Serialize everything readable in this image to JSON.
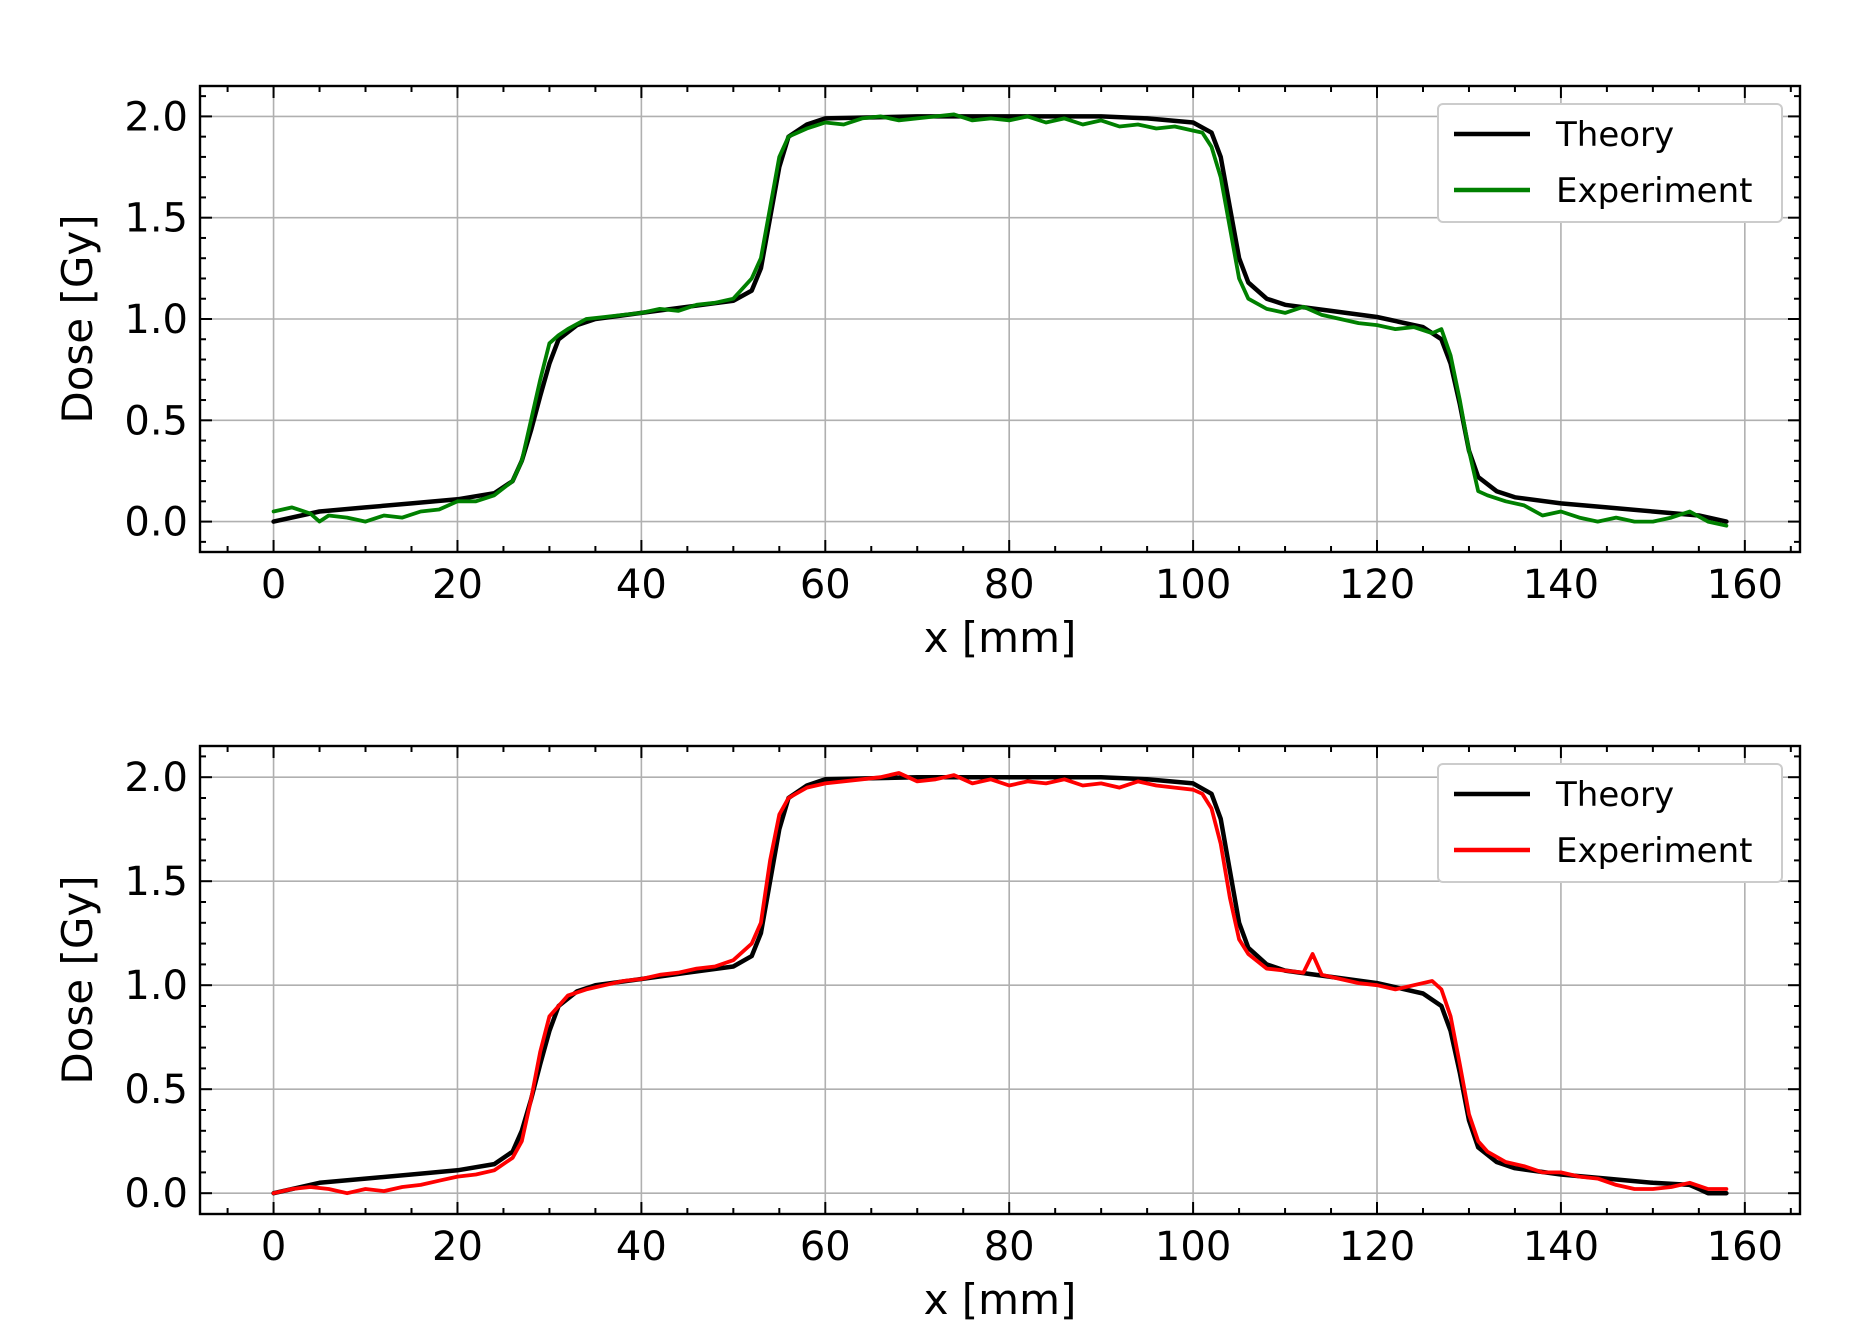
{
  "chart_data": [
    {
      "type": "line",
      "xlabel": "x [mm]",
      "ylabel": "Dose [Gy]",
      "xlim": [
        -8,
        166
      ],
      "ylim": [
        -0.15,
        2.15
      ],
      "xticks": [
        0,
        20,
        40,
        60,
        80,
        100,
        120,
        140,
        160
      ],
      "yticks": [
        0.0,
        0.5,
        1.0,
        1.5,
        2.0
      ],
      "xtick_labels": [
        "0",
        "20",
        "40",
        "60",
        "80",
        "100",
        "120",
        "140",
        "160"
      ],
      "ytick_labels": [
        "0.0",
        "0.5",
        "1.0",
        "1.5",
        "2.0"
      ],
      "grid": true,
      "legend_position": "top-right",
      "series": [
        {
          "name": "Theory",
          "color": "#000000",
          "x": [
            0,
            5,
            10,
            15,
            20,
            24,
            26,
            27,
            28,
            29,
            30,
            31,
            33,
            35,
            40,
            45,
            50,
            52,
            53,
            54,
            55,
            56,
            58,
            60,
            70,
            80,
            90,
            95,
            100,
            102,
            103,
            104,
            105,
            106,
            108,
            110,
            115,
            120,
            125,
            127,
            128,
            129,
            130,
            131,
            133,
            135,
            140,
            145,
            150,
            155,
            158
          ],
          "y": [
            0.0,
            0.05,
            0.07,
            0.09,
            0.11,
            0.14,
            0.2,
            0.3,
            0.45,
            0.62,
            0.78,
            0.9,
            0.97,
            1.0,
            1.03,
            1.06,
            1.09,
            1.14,
            1.25,
            1.5,
            1.75,
            1.9,
            1.96,
            1.99,
            2.0,
            2.0,
            2.0,
            1.99,
            1.97,
            1.92,
            1.8,
            1.55,
            1.3,
            1.18,
            1.1,
            1.07,
            1.04,
            1.01,
            0.96,
            0.9,
            0.78,
            0.58,
            0.35,
            0.22,
            0.15,
            0.12,
            0.09,
            0.07,
            0.05,
            0.03,
            0.0
          ]
        },
        {
          "name": "Experiment",
          "color": "#008000",
          "x": [
            0,
            2,
            4,
            5,
            6,
            8,
            10,
            12,
            14,
            16,
            18,
            20,
            22,
            24,
            26,
            27,
            28,
            29,
            30,
            31,
            32,
            34,
            36,
            38,
            40,
            42,
            44,
            46,
            48,
            50,
            52,
            53,
            54,
            55,
            56,
            58,
            60,
            62,
            64,
            66,
            68,
            70,
            72,
            74,
            76,
            78,
            80,
            82,
            84,
            86,
            88,
            90,
            92,
            94,
            96,
            98,
            100,
            101,
            102,
            103,
            104,
            105,
            106,
            108,
            110,
            112,
            114,
            116,
            118,
            120,
            122,
            124,
            126,
            127,
            128,
            129,
            130,
            131,
            132,
            134,
            136,
            138,
            140,
            142,
            144,
            146,
            148,
            150,
            152,
            154,
            156,
            158
          ],
          "y": [
            0.05,
            0.07,
            0.04,
            0.0,
            0.03,
            0.02,
            0.0,
            0.03,
            0.02,
            0.05,
            0.06,
            0.1,
            0.1,
            0.13,
            0.2,
            0.3,
            0.5,
            0.7,
            0.88,
            0.92,
            0.95,
            1.0,
            1.01,
            1.02,
            1.03,
            1.05,
            1.04,
            1.07,
            1.08,
            1.1,
            1.2,
            1.3,
            1.55,
            1.8,
            1.9,
            1.94,
            1.97,
            1.96,
            1.99,
            2.0,
            1.98,
            1.99,
            2.0,
            2.01,
            1.98,
            1.99,
            1.98,
            2.0,
            1.97,
            1.99,
            1.96,
            1.98,
            1.95,
            1.96,
            1.94,
            1.95,
            1.93,
            1.92,
            1.85,
            1.7,
            1.45,
            1.2,
            1.1,
            1.05,
            1.03,
            1.06,
            1.02,
            1.0,
            0.98,
            0.97,
            0.95,
            0.96,
            0.93,
            0.95,
            0.82,
            0.6,
            0.35,
            0.15,
            0.13,
            0.1,
            0.08,
            0.03,
            0.05,
            0.02,
            0.0,
            0.02,
            0.0,
            0.0,
            0.02,
            0.05,
            0.0,
            -0.02
          ]
        }
      ]
    },
    {
      "type": "line",
      "xlabel": "x [mm]",
      "ylabel": "Dose [Gy]",
      "xlim": [
        -8,
        166
      ],
      "ylim": [
        -0.1,
        2.15
      ],
      "xticks": [
        0,
        20,
        40,
        60,
        80,
        100,
        120,
        140,
        160
      ],
      "yticks": [
        0.0,
        0.5,
        1.0,
        1.5,
        2.0
      ],
      "xtick_labels": [
        "0",
        "20",
        "40",
        "60",
        "80",
        "100",
        "120",
        "140",
        "160"
      ],
      "ytick_labels": [
        "0.0",
        "0.5",
        "1.0",
        "1.5",
        "2.0"
      ],
      "grid": true,
      "legend_position": "top-right",
      "series": [
        {
          "name": "Theory",
          "color": "#000000",
          "x": [
            0,
            5,
            10,
            15,
            20,
            24,
            26,
            27,
            28,
            29,
            30,
            31,
            33,
            35,
            40,
            45,
            50,
            52,
            53,
            54,
            55,
            56,
            58,
            60,
            70,
            80,
            90,
            95,
            100,
            102,
            103,
            104,
            105,
            106,
            108,
            110,
            115,
            120,
            125,
            127,
            128,
            129,
            130,
            131,
            133,
            135,
            140,
            145,
            150,
            154,
            155,
            156,
            158
          ],
          "y": [
            0.0,
            0.05,
            0.07,
            0.09,
            0.11,
            0.14,
            0.2,
            0.3,
            0.45,
            0.62,
            0.78,
            0.9,
            0.97,
            1.0,
            1.03,
            1.06,
            1.09,
            1.14,
            1.25,
            1.5,
            1.75,
            1.9,
            1.96,
            1.99,
            2.0,
            2.0,
            2.0,
            1.99,
            1.97,
            1.92,
            1.8,
            1.55,
            1.3,
            1.18,
            1.1,
            1.07,
            1.04,
            1.01,
            0.96,
            0.9,
            0.78,
            0.58,
            0.35,
            0.22,
            0.15,
            0.12,
            0.09,
            0.07,
            0.05,
            0.04,
            0.02,
            0.0,
            0.0
          ]
        },
        {
          "name": "Experiment",
          "color": "#ff0000",
          "x": [
            0,
            2,
            4,
            6,
            8,
            10,
            12,
            14,
            16,
            18,
            20,
            22,
            24,
            26,
            27,
            28,
            29,
            30,
            31,
            32,
            34,
            36,
            38,
            40,
            42,
            44,
            46,
            48,
            50,
            52,
            53,
            54,
            55,
            56,
            58,
            60,
            62,
            64,
            66,
            68,
            70,
            72,
            74,
            76,
            78,
            80,
            82,
            84,
            86,
            88,
            90,
            92,
            94,
            96,
            98,
            100,
            101,
            102,
            103,
            104,
            105,
            106,
            108,
            110,
            112,
            113,
            114,
            116,
            118,
            120,
            122,
            124,
            126,
            127,
            128,
            129,
            130,
            131,
            132,
            134,
            136,
            138,
            140,
            142,
            144,
            146,
            148,
            150,
            152,
            154,
            156,
            158
          ],
          "y": [
            0.0,
            0.02,
            0.03,
            0.02,
            0.0,
            0.02,
            0.01,
            0.03,
            0.04,
            0.06,
            0.08,
            0.09,
            0.11,
            0.17,
            0.25,
            0.45,
            0.68,
            0.85,
            0.9,
            0.95,
            0.98,
            1.0,
            1.02,
            1.03,
            1.05,
            1.06,
            1.08,
            1.09,
            1.12,
            1.2,
            1.3,
            1.6,
            1.82,
            1.9,
            1.95,
            1.97,
            1.98,
            1.99,
            2.0,
            2.02,
            1.98,
            1.99,
            2.01,
            1.97,
            1.99,
            1.96,
            1.98,
            1.97,
            1.99,
            1.96,
            1.97,
            1.95,
            1.98,
            1.96,
            1.95,
            1.94,
            1.92,
            1.85,
            1.68,
            1.42,
            1.22,
            1.15,
            1.08,
            1.07,
            1.06,
            1.15,
            1.05,
            1.03,
            1.01,
            1.0,
            0.98,
            1.0,
            1.02,
            0.98,
            0.85,
            0.62,
            0.38,
            0.25,
            0.2,
            0.15,
            0.13,
            0.1,
            0.1,
            0.08,
            0.07,
            0.04,
            0.02,
            0.02,
            0.03,
            0.05,
            0.02,
            0.02
          ]
        }
      ]
    }
  ]
}
